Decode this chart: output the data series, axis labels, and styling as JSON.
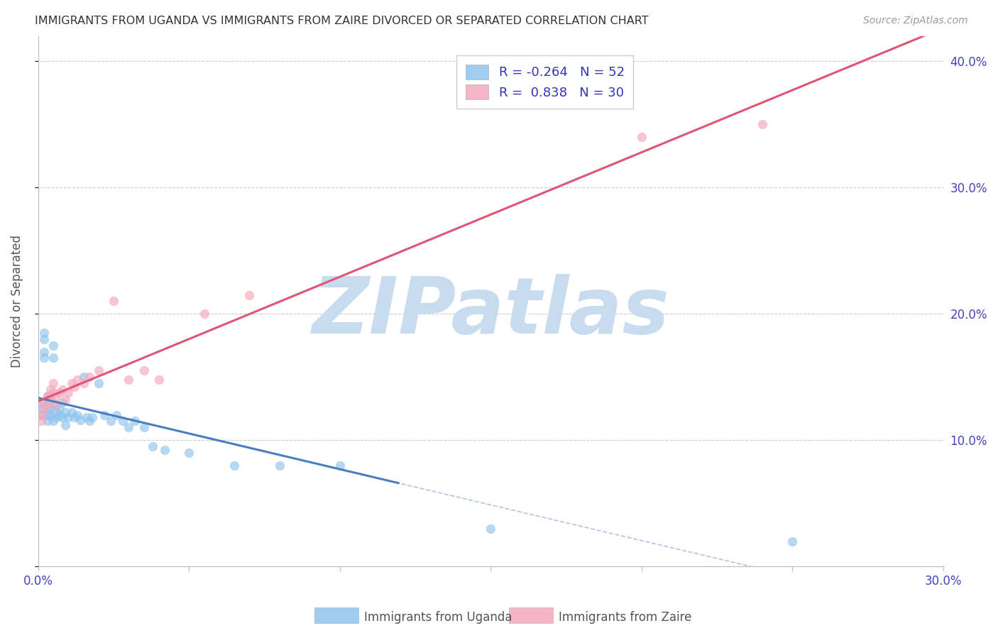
{
  "title": "IMMIGRANTS FROM UGANDA VS IMMIGRANTS FROM ZAIRE DIVORCED OR SEPARATED CORRELATION CHART",
  "source": "Source: ZipAtlas.com",
  "ylabel": "Divorced or Separated",
  "xlim": [
    0.0,
    0.3
  ],
  "ylim": [
    0.0,
    0.42
  ],
  "R_uganda": -0.264,
  "N_uganda": 52,
  "R_zaire": 0.838,
  "N_zaire": 30,
  "color_uganda": "#90C4EE",
  "color_zaire": "#F5A8BC",
  "line_color_uganda": "#4A7EC0",
  "line_color_zaire": "#E05575",
  "watermark_color": "#C8DCF0",
  "legend_label_uganda": "Immigrants from Uganda",
  "legend_label_zaire": "Immigrants from Zaire",
  "uganda_x": [
    0.001,
    0.001,
    0.001,
    0.002,
    0.002,
    0.002,
    0.002,
    0.003,
    0.003,
    0.003,
    0.003,
    0.003,
    0.004,
    0.004,
    0.004,
    0.005,
    0.005,
    0.005,
    0.006,
    0.006,
    0.006,
    0.007,
    0.007,
    0.008,
    0.008,
    0.009,
    0.009,
    0.01,
    0.011,
    0.012,
    0.013,
    0.014,
    0.015,
    0.016,
    0.017,
    0.018,
    0.02,
    0.022,
    0.024,
    0.026,
    0.028,
    0.03,
    0.032,
    0.035,
    0.038,
    0.042,
    0.05,
    0.065,
    0.08,
    0.1,
    0.15,
    0.25
  ],
  "uganda_y": [
    0.13,
    0.125,
    0.12,
    0.185,
    0.18,
    0.17,
    0.165,
    0.135,
    0.13,
    0.125,
    0.12,
    0.115,
    0.135,
    0.125,
    0.12,
    0.175,
    0.165,
    0.115,
    0.128,
    0.122,
    0.118,
    0.125,
    0.12,
    0.13,
    0.118,
    0.122,
    0.112,
    0.118,
    0.122,
    0.118,
    0.12,
    0.116,
    0.15,
    0.118,
    0.115,
    0.118,
    0.145,
    0.12,
    0.115,
    0.12,
    0.115,
    0.11,
    0.115,
    0.11,
    0.095,
    0.092,
    0.09,
    0.08,
    0.08,
    0.08,
    0.03,
    0.02
  ],
  "zaire_x": [
    0.001,
    0.001,
    0.002,
    0.002,
    0.003,
    0.003,
    0.004,
    0.004,
    0.005,
    0.005,
    0.006,
    0.006,
    0.007,
    0.008,
    0.009,
    0.01,
    0.011,
    0.012,
    0.013,
    0.015,
    0.017,
    0.02,
    0.025,
    0.03,
    0.035,
    0.04,
    0.055,
    0.07,
    0.2,
    0.24
  ],
  "zaire_y": [
    0.12,
    0.115,
    0.13,
    0.125,
    0.135,
    0.128,
    0.14,
    0.132,
    0.145,
    0.138,
    0.135,
    0.128,
    0.138,
    0.14,
    0.132,
    0.138,
    0.145,
    0.142,
    0.148,
    0.145,
    0.15,
    0.155,
    0.21,
    0.148,
    0.155,
    0.148,
    0.2,
    0.215,
    0.34,
    0.35
  ]
}
